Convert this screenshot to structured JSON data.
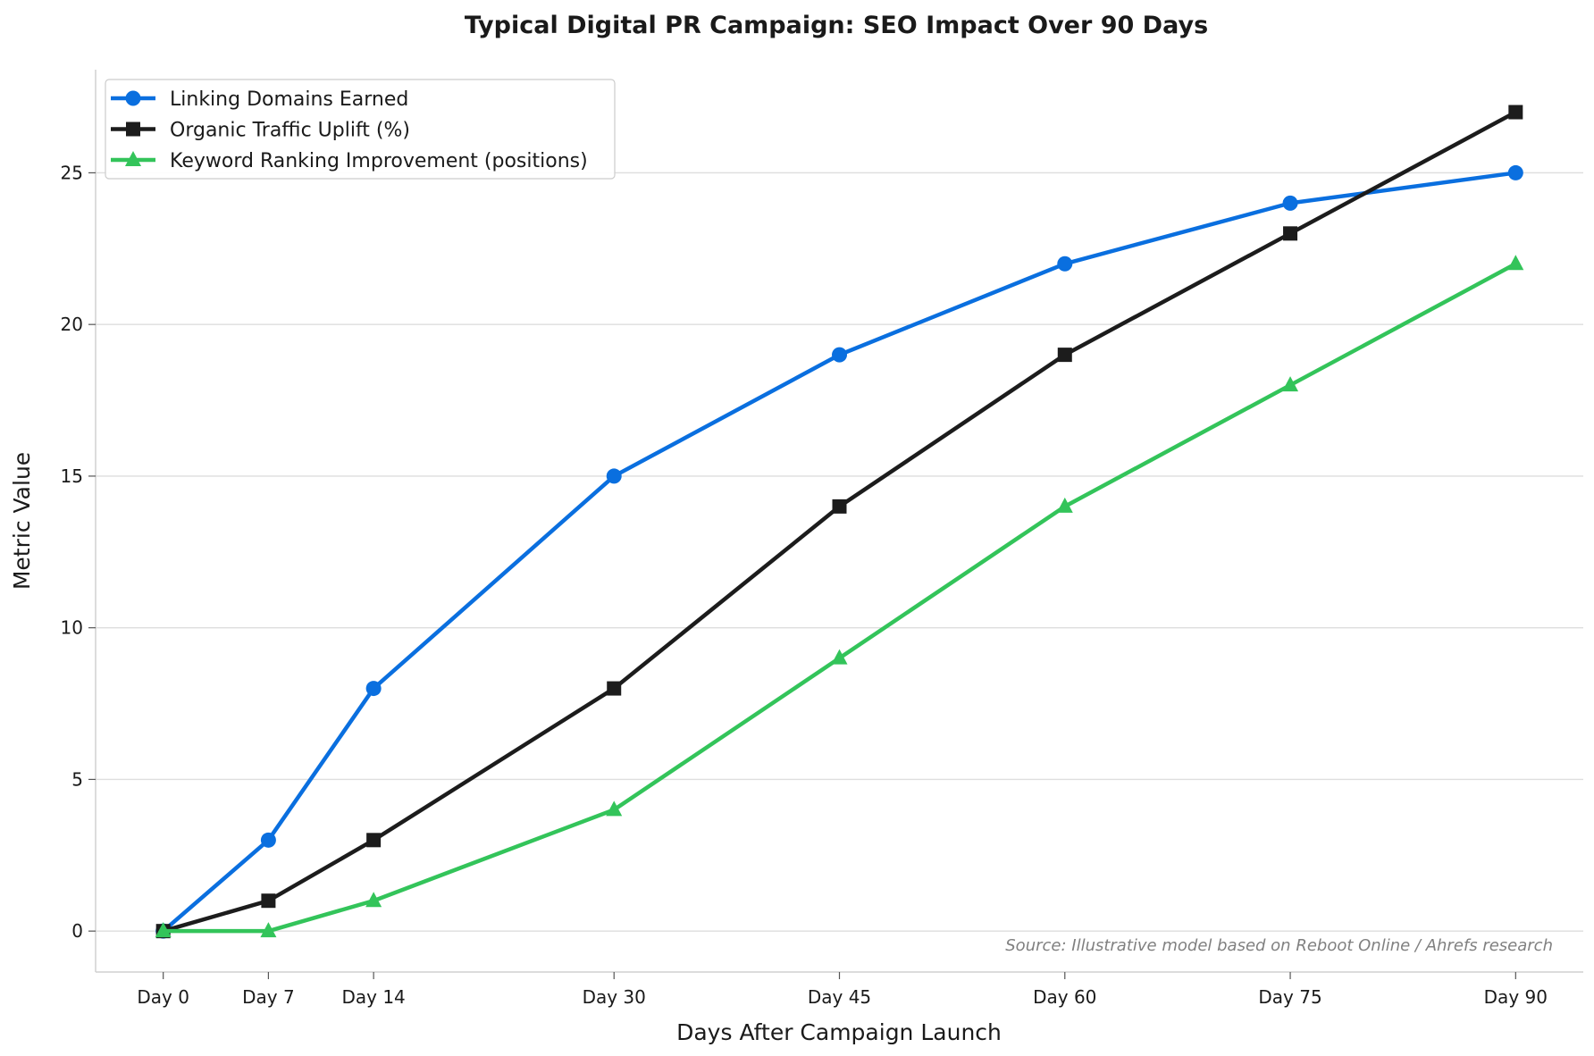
{
  "chart_data": {
    "type": "line",
    "title": "Typical Digital PR Campaign: SEO Impact Over 90 Days",
    "xlabel": "Days After Campaign Launch",
    "ylabel": "Metric Value",
    "x": [
      0,
      7,
      14,
      30,
      45,
      60,
      75,
      90
    ],
    "x_tick_labels": [
      "Day 0",
      "Day 7",
      "Day 14",
      "Day 30",
      "Day 45",
      "Day 60",
      "Day 75",
      "Day 90"
    ],
    "xlim": [
      -4.5,
      94.5
    ],
    "ylim": [
      -1.35,
      28.4
    ],
    "y_ticks": [
      0,
      5,
      10,
      15,
      20,
      25
    ],
    "grid": "y",
    "legend_position": "top-left",
    "series": [
      {
        "name": "Linking Domains Earned",
        "color": "#0a6fdf",
        "marker": "circle",
        "values": [
          0,
          3,
          8,
          15,
          19,
          22,
          24,
          25
        ]
      },
      {
        "name": "Organic Traffic Uplift (%)",
        "color": "#1c1c1c",
        "marker": "square",
        "values": [
          0,
          1,
          3,
          8,
          14,
          19,
          23,
          27
        ]
      },
      {
        "name": "Keyword Ranking Improvement (positions)",
        "color": "#33c45a",
        "marker": "triangle",
        "values": [
          0,
          0,
          1,
          4,
          9,
          14,
          18,
          22
        ]
      }
    ],
    "annotation": "Source: Illustrative model based on Reboot Online / Ahrefs research"
  }
}
